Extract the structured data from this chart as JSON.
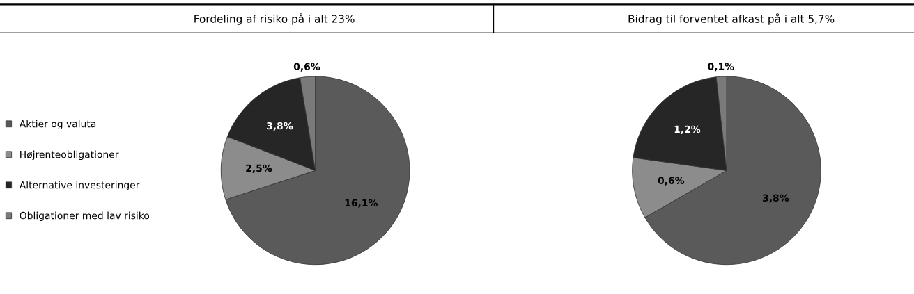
{
  "chart_data": [
    {
      "type": "pie",
      "title": "Fordeling af risiko på i alt 23%",
      "categories": [
        "Aktier og valuta",
        "Højrenteobligationer",
        "Alternative investeringer",
        "Obligationer med lav risiko"
      ],
      "values": [
        16.1,
        2.5,
        3.8,
        0.6
      ],
      "value_labels": [
        "16,1%",
        "2,5%",
        "3,8%",
        "0,6%"
      ],
      "colors": [
        "#5a5a5a",
        "#8c8c8c",
        "#262626",
        "#7a7a7a"
      ],
      "legend": "left"
    },
    {
      "type": "pie",
      "title": "Bidrag til forventet afkast på i alt 5,7%",
      "values": [
        3.8,
        0.6,
        1.2,
        0.1
      ],
      "value_labels": [
        "3,8%",
        "0,6%",
        "1,2%",
        "0,1%"
      ],
      "colors": [
        "#5a5a5a",
        "#8c8c8c",
        "#262626",
        "#7a7a7a"
      ],
      "legend": false
    }
  ]
}
